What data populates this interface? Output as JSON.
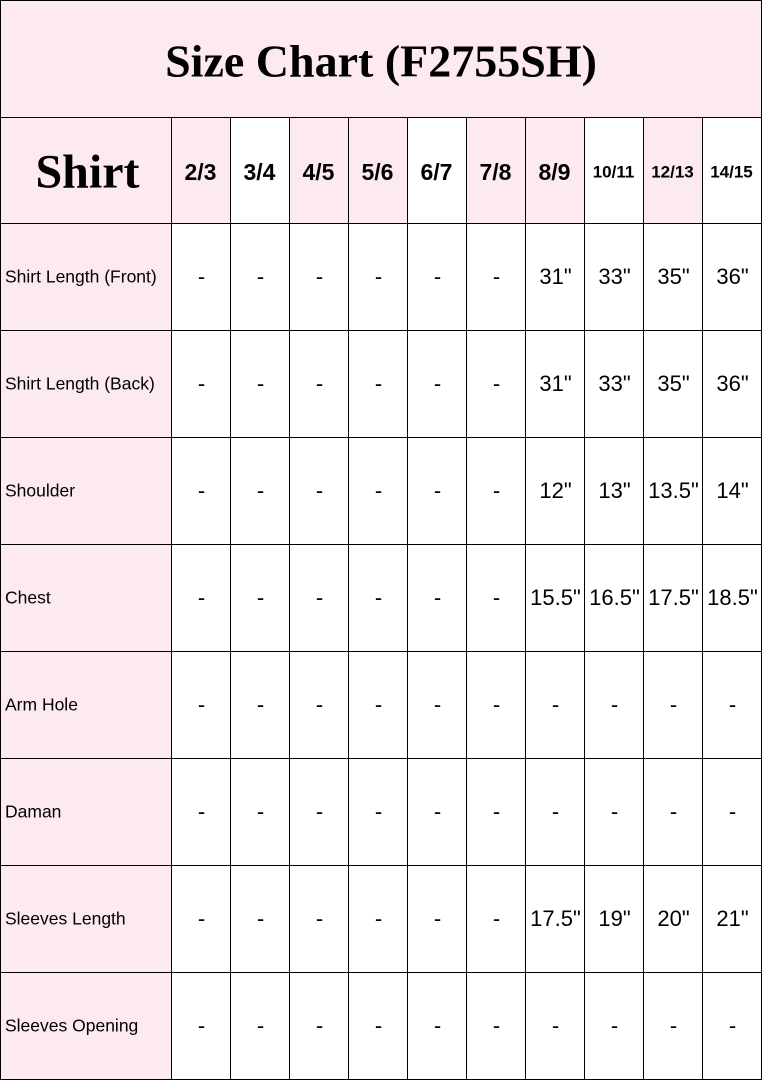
{
  "title": "Size Chart (F2755SH)",
  "table": {
    "header": [
      "Shirt",
      "2/3",
      "3/4",
      "4/5",
      "5/6",
      "6/7",
      "7/8",
      "8/9",
      "10/11",
      "12/13",
      "14/15"
    ],
    "rows": [
      [
        "Shirt Length (Front)",
        "-",
        "-",
        "-",
        "-",
        "-",
        "-",
        "31\"",
        "33\"",
        "35\"",
        "36\""
      ],
      [
        "Shirt Length (Back)",
        "-",
        "-",
        "-",
        "-",
        "-",
        "-",
        "31\"",
        "33\"",
        "35\"",
        "36\""
      ],
      [
        "Shoulder",
        "-",
        "-",
        "-",
        "-",
        "-",
        "-",
        "12\"",
        "13\"",
        "13.5\"",
        "14\""
      ],
      [
        "Chest",
        "-",
        "-",
        "-",
        "-",
        "-",
        "-",
        "15.5\"",
        "16.5\"",
        "17.5\"",
        "18.5\""
      ],
      [
        "Arm Hole",
        "-",
        "-",
        "-",
        "-",
        "-",
        "-",
        "-",
        "-",
        "-",
        "-"
      ],
      [
        "Daman",
        "-",
        "-",
        "-",
        "-",
        "-",
        "-",
        "-",
        "-",
        "-",
        "-"
      ],
      [
        "Sleeves Length",
        "-",
        "-",
        "-",
        "-",
        "-",
        "-",
        "17.5\"",
        "19\"",
        "20\"",
        "21\""
      ],
      [
        "Sleeves Opening",
        "-",
        "-",
        "-",
        "-",
        "-",
        "-",
        "-",
        "-",
        "-",
        "-"
      ]
    ]
  }
}
